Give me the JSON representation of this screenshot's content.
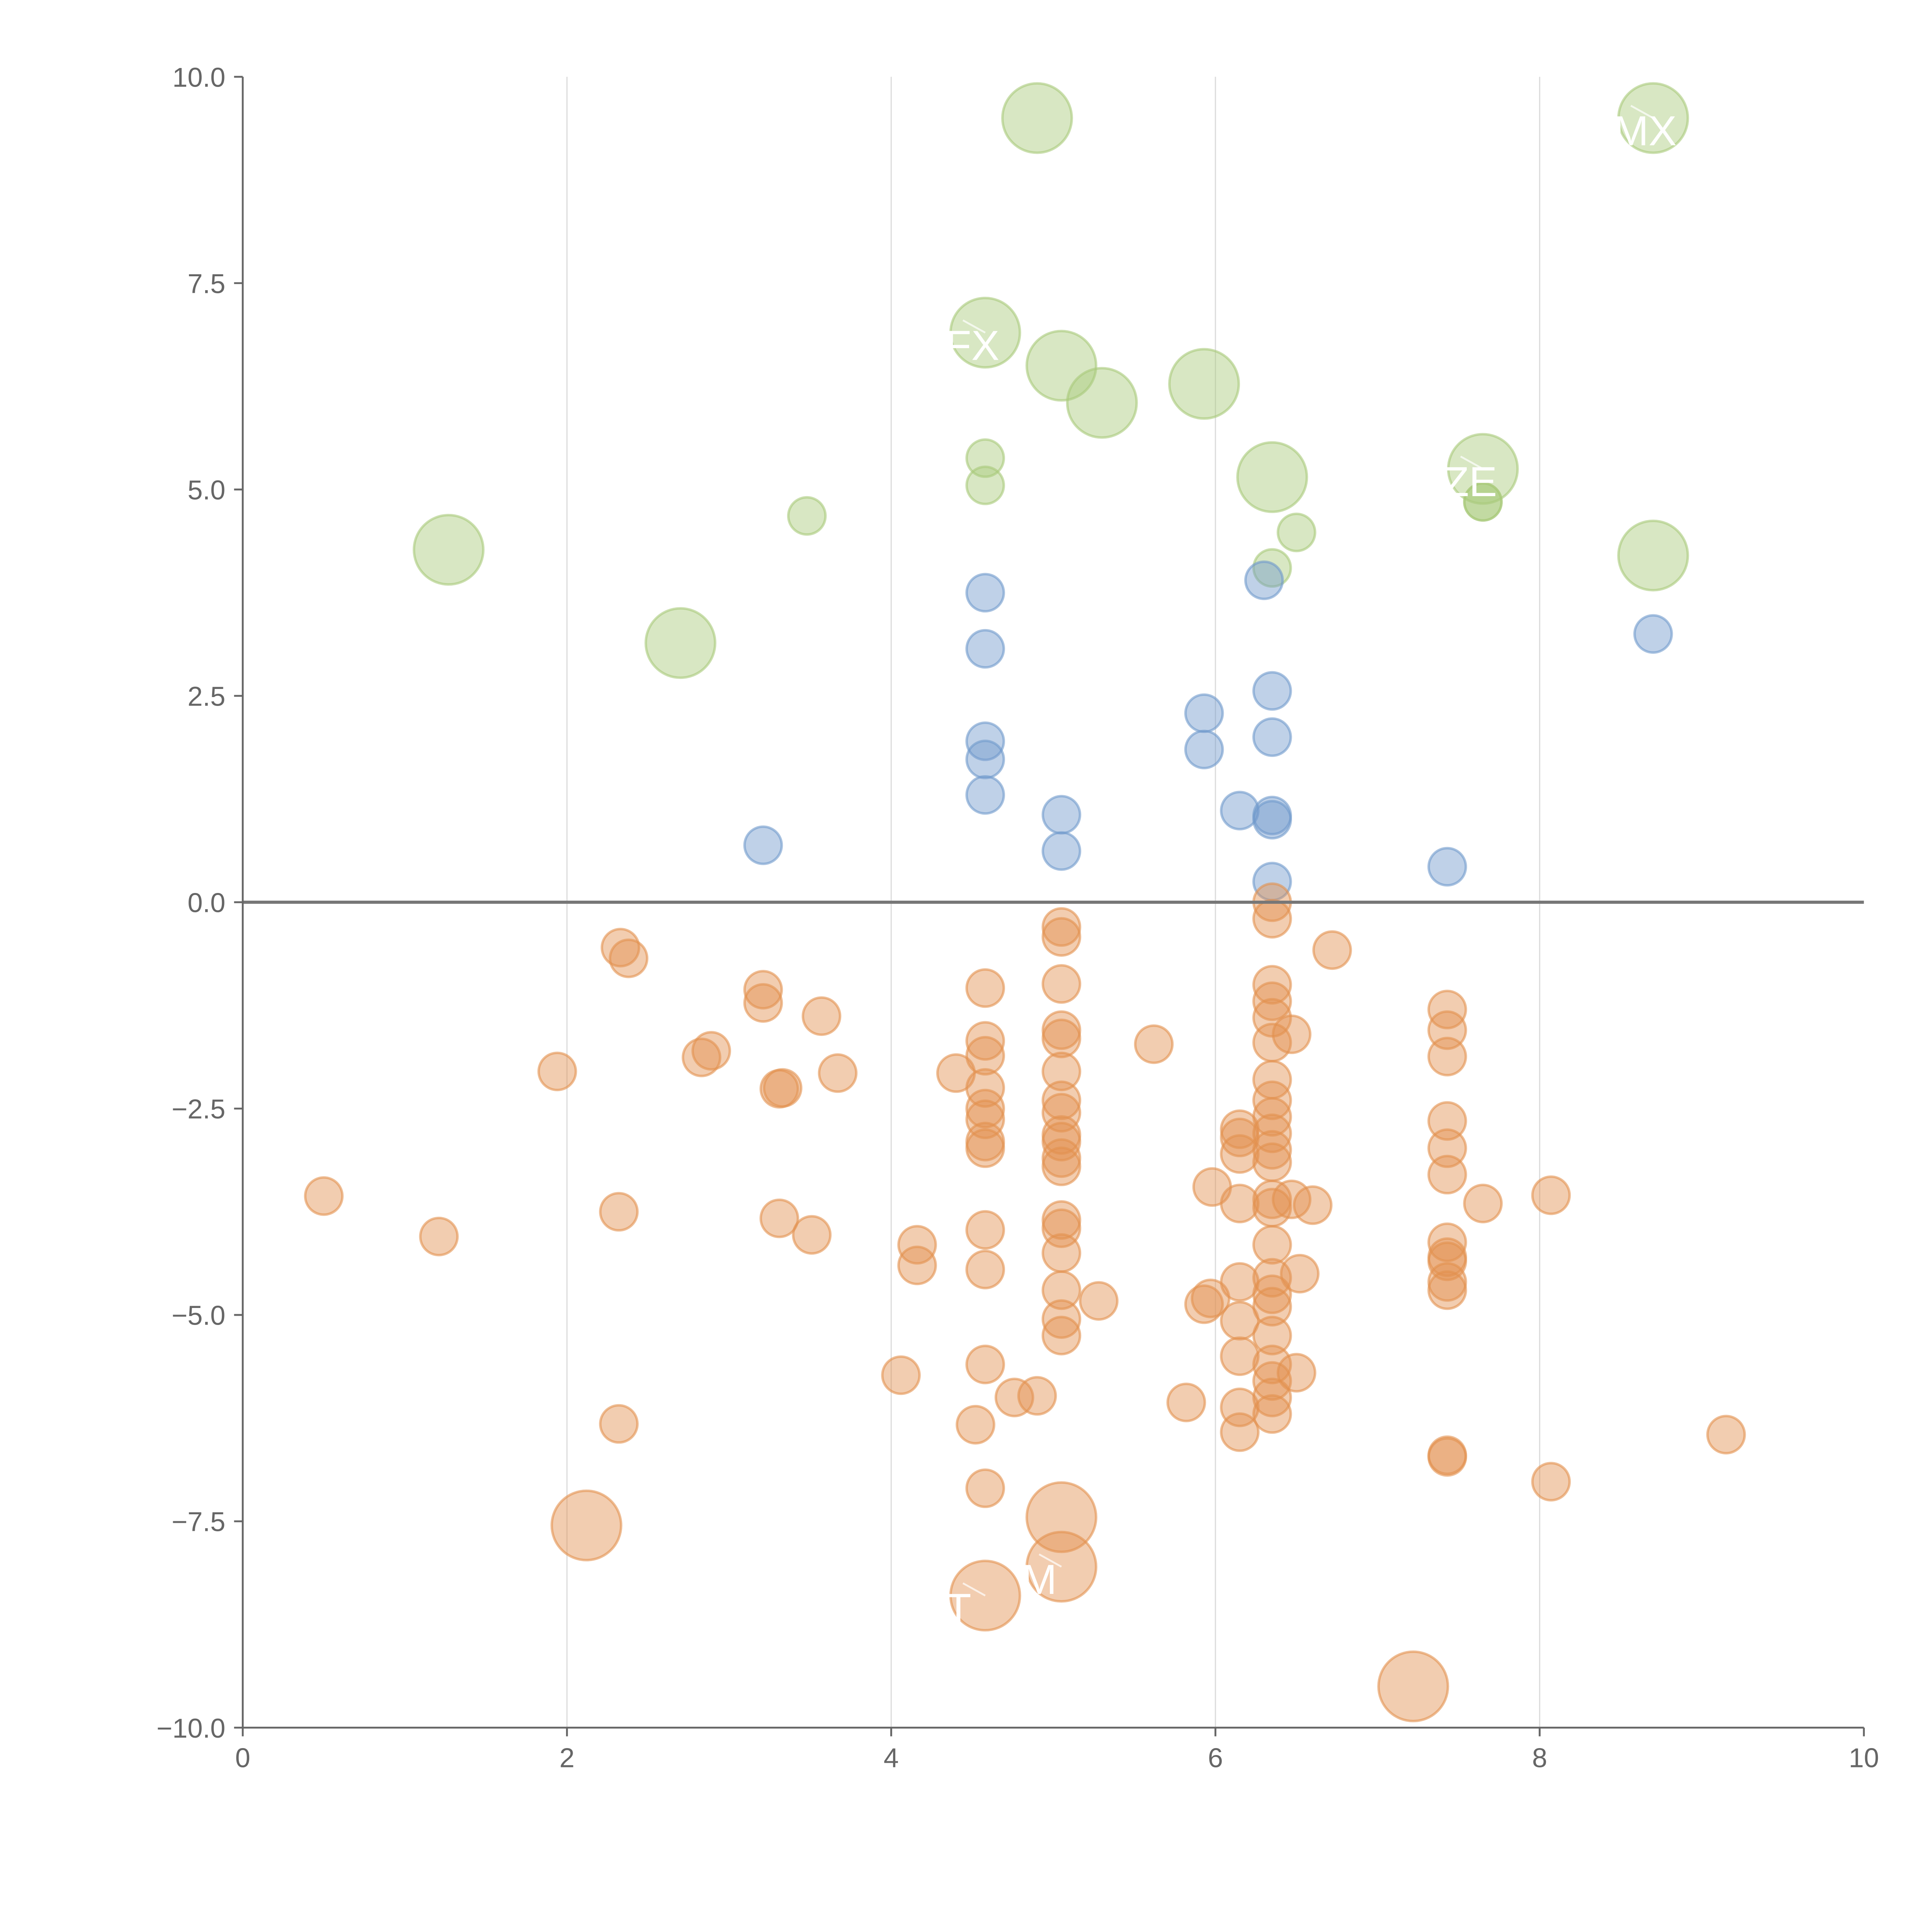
{
  "chart_data": {
    "type": "scatter",
    "title": "",
    "xlabel": "",
    "ylabel": "",
    "xlim": [
      0,
      10
    ],
    "ylim": [
      -10,
      10
    ],
    "xticks": [
      "0",
      "2",
      "4",
      "6",
      "8",
      "10"
    ],
    "yticks": [
      "10.0",
      "7.5",
      "5.0",
      "2.5",
      "0.0",
      "−2.5",
      "−5.0",
      "−7.5",
      "−10.0"
    ],
    "xtick_values": [
      0,
      2,
      4,
      6,
      8,
      10
    ],
    "ytick_values": [
      10,
      7.5,
      5,
      2.5,
      0,
      -2.5,
      -5,
      -7.5,
      -10
    ],
    "grid": "vertical",
    "reference_line_y": 0,
    "point_format": "[x, y, size]",
    "series": [
      {
        "name": "green",
        "color": "#a9c97a",
        "points": [
          [
            4.9,
            9.5,
            2
          ],
          [
            8.7,
            9.5,
            2
          ],
          [
            4.58,
            6.9,
            2
          ],
          [
            5.05,
            6.5,
            2
          ],
          [
            5.3,
            6.05,
            2
          ],
          [
            5.93,
            6.28,
            2
          ],
          [
            6.35,
            5.15,
            2
          ],
          [
            7.65,
            5.25,
            2
          ],
          [
            8.7,
            4.2,
            2
          ],
          [
            1.27,
            4.27,
            2
          ],
          [
            2.7,
            3.14,
            2
          ],
          [
            4.58,
            5.38,
            1
          ],
          [
            4.58,
            5.05,
            1
          ],
          [
            3.48,
            4.68,
            1
          ],
          [
            6.5,
            4.48,
            1
          ],
          [
            6.35,
            4.05,
            1
          ],
          [
            7.65,
            4.85,
            1
          ],
          [
            7.65,
            4.85,
            1
          ]
        ]
      },
      {
        "name": "blue",
        "color": "#7099cc",
        "points": [
          [
            4.58,
            3.75,
            1
          ],
          [
            4.58,
            3.07,
            1
          ],
          [
            4.58,
            1.95,
            1
          ],
          [
            4.58,
            1.73,
            1
          ],
          [
            4.58,
            1.3,
            1
          ],
          [
            3.21,
            0.69,
            1
          ],
          [
            5.05,
            1.06,
            1
          ],
          [
            5.05,
            0.62,
            1
          ],
          [
            5.93,
            2.29,
            1
          ],
          [
            5.93,
            1.85,
            1
          ],
          [
            6.15,
            1.11,
            1
          ],
          [
            6.35,
            2.56,
            1
          ],
          [
            6.35,
            2.0,
            1
          ],
          [
            6.35,
            1.05,
            1
          ],
          [
            6.35,
            1.0,
            1
          ],
          [
            6.35,
            0.25,
            1
          ],
          [
            6.3,
            3.9,
            1
          ],
          [
            7.43,
            0.43,
            1
          ],
          [
            8.7,
            3.25,
            1
          ]
        ]
      },
      {
        "name": "orange",
        "color": "#e2914f",
        "points": [
          [
            2.12,
            -7.55,
            2
          ],
          [
            4.58,
            -8.4,
            2
          ],
          [
            5.05,
            -7.45,
            2
          ],
          [
            5.05,
            -8.05,
            2
          ],
          [
            7.22,
            -9.5,
            2
          ],
          [
            0.5,
            -3.56,
            1
          ],
          [
            1.21,
            -4.05,
            1
          ],
          [
            1.94,
            -2.05,
            1
          ],
          [
            2.33,
            -0.55,
            1
          ],
          [
            2.38,
            -0.68,
            1
          ],
          [
            2.32,
            -3.75,
            1
          ],
          [
            2.32,
            -6.32,
            1
          ],
          [
            2.83,
            -1.88,
            1
          ],
          [
            2.89,
            -1.8,
            1
          ],
          [
            3.21,
            -1.06,
            1
          ],
          [
            3.21,
            -1.22,
            1
          ],
          [
            3.31,
            -2.26,
            1
          ],
          [
            3.33,
            -2.25,
            1
          ],
          [
            3.31,
            -3.83,
            1
          ],
          [
            3.51,
            -4.03,
            1
          ],
          [
            3.57,
            -1.38,
            1
          ],
          [
            3.67,
            -2.07,
            1
          ],
          [
            4.06,
            -5.73,
            1
          ],
          [
            4.16,
            -4.15,
            1
          ],
          [
            4.16,
            -4.4,
            1
          ],
          [
            4.4,
            -2.07,
            1
          ],
          [
            4.52,
            -6.33,
            1
          ],
          [
            4.58,
            -1.04,
            1
          ],
          [
            4.58,
            -1.68,
            1
          ],
          [
            4.58,
            -1.86,
            1
          ],
          [
            4.58,
            -2.25,
            1
          ],
          [
            4.58,
            -2.5,
            1
          ],
          [
            4.58,
            -2.63,
            1
          ],
          [
            4.58,
            -2.9,
            1
          ],
          [
            4.58,
            -2.98,
            1
          ],
          [
            4.58,
            -3.97,
            1
          ],
          [
            4.58,
            -4.45,
            1
          ],
          [
            4.58,
            -5.6,
            1
          ],
          [
            4.58,
            -7.1,
            1
          ],
          [
            4.76,
            -6.0,
            1
          ],
          [
            4.9,
            -5.98,
            1
          ],
          [
            5.05,
            -0.3,
            1
          ],
          [
            5.05,
            -0.42,
            1
          ],
          [
            5.05,
            -0.99,
            1
          ],
          [
            5.05,
            -1.55,
            1
          ],
          [
            5.05,
            -1.65,
            1
          ],
          [
            5.05,
            -2.05,
            1
          ],
          [
            5.05,
            -2.4,
            1
          ],
          [
            5.05,
            -2.55,
            1
          ],
          [
            5.05,
            -2.82,
            1
          ],
          [
            5.05,
            -2.9,
            1
          ],
          [
            5.05,
            -3.1,
            1
          ],
          [
            5.05,
            -3.2,
            1
          ],
          [
            5.05,
            -3.85,
            1
          ],
          [
            5.05,
            -3.95,
            1
          ],
          [
            5.05,
            -4.25,
            1
          ],
          [
            5.05,
            -4.7,
            1
          ],
          [
            5.05,
            -5.05,
            1
          ],
          [
            5.05,
            -5.25,
            1
          ],
          [
            5.28,
            -4.83,
            1
          ],
          [
            5.62,
            -1.72,
            1
          ],
          [
            5.82,
            -6.06,
            1
          ],
          [
            5.93,
            -4.87,
            1
          ],
          [
            5.97,
            -4.8,
            1
          ],
          [
            5.98,
            -3.45,
            1
          ],
          [
            6.15,
            -2.75,
            1
          ],
          [
            6.15,
            -2.85,
            1
          ],
          [
            6.15,
            -3.05,
            1
          ],
          [
            6.15,
            -3.65,
            1
          ],
          [
            6.15,
            -4.6,
            1
          ],
          [
            6.15,
            -5.07,
            1
          ],
          [
            6.15,
            -5.5,
            1
          ],
          [
            6.15,
            -6.12,
            1
          ],
          [
            6.15,
            -6.42,
            1
          ],
          [
            6.35,
            0.0,
            1
          ],
          [
            6.35,
            -0.2,
            1
          ],
          [
            6.35,
            -1.0,
            1
          ],
          [
            6.35,
            -1.2,
            1
          ],
          [
            6.35,
            -1.4,
            1
          ],
          [
            6.35,
            -1.7,
            1
          ],
          [
            6.35,
            -2.15,
            1
          ],
          [
            6.35,
            -2.4,
            1
          ],
          [
            6.35,
            -2.6,
            1
          ],
          [
            6.35,
            -2.8,
            1
          ],
          [
            6.35,
            -3.0,
            1
          ],
          [
            6.35,
            -3.15,
            1
          ],
          [
            6.35,
            -3.6,
            1
          ],
          [
            6.35,
            -3.7,
            1
          ],
          [
            6.35,
            -4.15,
            1
          ],
          [
            6.35,
            -4.55,
            1
          ],
          [
            6.35,
            -4.75,
            1
          ],
          [
            6.35,
            -4.9,
            1
          ],
          [
            6.35,
            -5.25,
            1
          ],
          [
            6.35,
            -5.6,
            1
          ],
          [
            6.35,
            -5.8,
            1
          ],
          [
            6.35,
            -6.0,
            1
          ],
          [
            6.35,
            -6.2,
            1
          ],
          [
            6.47,
            -1.6,
            1
          ],
          [
            6.47,
            -3.6,
            1
          ],
          [
            6.5,
            -5.7,
            1
          ],
          [
            6.52,
            -4.5,
            1
          ],
          [
            6.6,
            -3.67,
            1
          ],
          [
            6.72,
            -0.58,
            1
          ],
          [
            7.43,
            -1.3,
            1
          ],
          [
            7.43,
            -1.55,
            1
          ],
          [
            7.43,
            -1.87,
            1
          ],
          [
            7.43,
            -2.65,
            1
          ],
          [
            7.43,
            -2.98,
            1
          ],
          [
            7.43,
            -3.3,
            1
          ],
          [
            7.43,
            -4.12,
            1
          ],
          [
            7.43,
            -4.3,
            1
          ],
          [
            7.43,
            -4.35,
            1
          ],
          [
            7.43,
            -4.6,
            1
          ],
          [
            7.43,
            -4.7,
            1
          ],
          [
            7.43,
            -6.7,
            1
          ],
          [
            7.43,
            -6.72,
            1
          ],
          [
            7.65,
            -3.65,
            1
          ],
          [
            8.07,
            -3.55,
            1
          ],
          [
            8.07,
            -7.02,
            1
          ],
          [
            9.15,
            -6.45,
            1
          ]
        ]
      }
    ],
    "annotations": [
      {
        "text": "MX",
        "x": 8.7,
        "y": 9.5
      },
      {
        "text": "FX",
        "x": 4.58,
        "y": 6.9
      },
      {
        "text": "ZE",
        "x": 7.65,
        "y": 5.25
      },
      {
        "text": "T",
        "x": 4.58,
        "y": -8.4
      },
      {
        "text": "M",
        "x": 5.05,
        "y": -8.05
      }
    ]
  }
}
